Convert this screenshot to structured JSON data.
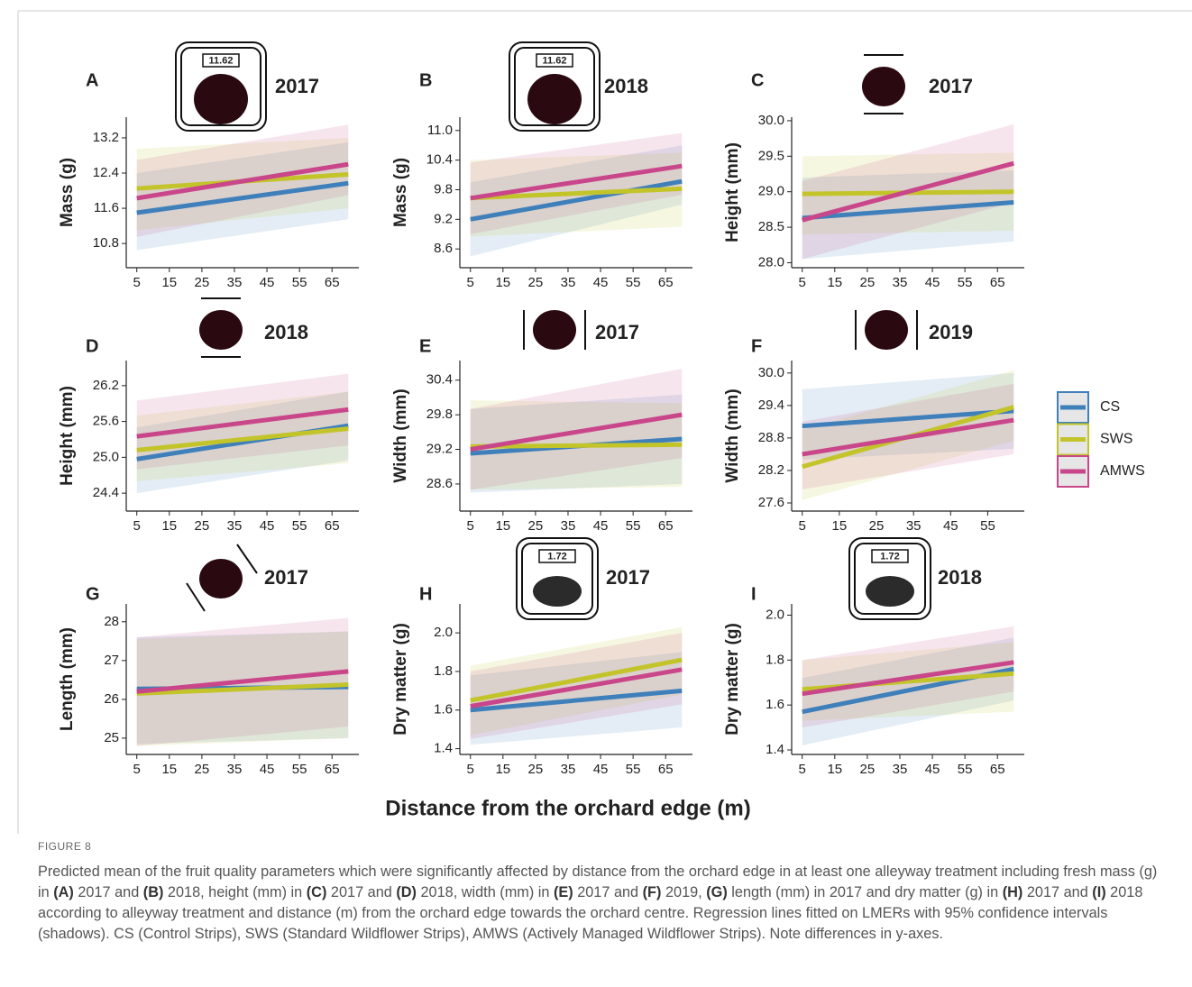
{
  "xlabel": "Distance from the orchard edge (m)",
  "legend": [
    {
      "name": "CS",
      "color": "#3f80bb"
    },
    {
      "name": "SWS",
      "color": "#c2c42a"
    },
    {
      "name": "AMWS",
      "color": "#c9468a"
    }
  ],
  "figure_label": "FIGURE 8",
  "caption": [
    "Predicted mean of the fruit quality parameters which were significantly affected by distance from the orchard edge in at least one alleyway treatment including fresh mass (g) in ",
    "(A)",
    " 2017 and ",
    "(B)",
    " 2018, height (mm) in ",
    "(C)",
    " 2017 and ",
    "(D)",
    " 2018, width (mm) in ",
    "(E)",
    " 2017 and ",
    "(F)",
    " 2019, ",
    "(G)",
    " length (mm) in 2017 and dry matter (g) in ",
    "(H)",
    " 2017 and ",
    "(I)",
    " 2018 according to alleyway treatment and distance (m) from the orchard edge towards the orchard centre. Regression lines fitted on LMERs with 95% confidence intervals (shadows). CS (Control Strips), SWS (Standard Wildflower Strips), AMWS (Actively Managed Wildflower Strips). Note differences in y-axes."
  ],
  "chart_data": [
    {
      "type": "line",
      "title": "A",
      "year": "2017",
      "icon_label": "11.62",
      "ylabel": "Mass (g)",
      "x": [
        5,
        70
      ],
      "xlim": [
        1.75,
        73.25
      ],
      "xticks": [
        5,
        15,
        25,
        35,
        45,
        55,
        65
      ],
      "ylim": [
        10.25,
        13.67
      ],
      "yticks": [
        10.8,
        11.6,
        12.4,
        13.2
      ],
      "series": [
        {
          "values": [
            11.5,
            12.17
          ],
          "lower": [
            10.65,
            11.35
          ],
          "upper": [
            12.4,
            13.1
          ]
        },
        {
          "values": [
            12.05,
            12.37
          ],
          "lower": [
            11.1,
            11.6
          ],
          "upper": [
            12.95,
            13.2
          ]
        },
        {
          "values": [
            11.83,
            12.6
          ],
          "lower": [
            10.95,
            11.9
          ],
          "upper": [
            12.7,
            13.5
          ]
        }
      ]
    },
    {
      "type": "line",
      "title": "B",
      "year": "2018",
      "icon_label": "11.62",
      "ylabel": "Mass (g)",
      "x": [
        5,
        70
      ],
      "xlim": [
        1.75,
        73.25
      ],
      "xticks": [
        5,
        15,
        25,
        35,
        45,
        55,
        65
      ],
      "ylim": [
        8.22,
        11.27
      ],
      "yticks": [
        8.6,
        9.2,
        9.8,
        10.4,
        {
          "value": 11,
          "label": "11.0"
        }
      ],
      "series": [
        {
          "values": [
            9.2,
            9.97
          ],
          "lower": [
            8.45,
            9.5
          ],
          "upper": [
            9.95,
            10.7
          ]
        },
        {
          "values": [
            9.63,
            9.82
          ],
          "lower": [
            8.85,
            9.05
          ],
          "upper": [
            10.4,
            10.55
          ]
        },
        {
          "values": [
            9.63,
            10.28
          ],
          "lower": [
            8.9,
            9.7
          ],
          "upper": [
            10.35,
            10.95
          ]
        }
      ]
    },
    {
      "type": "line",
      "title": "C",
      "year": "2017",
      "ylabel": "Height (mm)",
      "x": [
        5,
        70
      ],
      "xlim": [
        1.75,
        73.25
      ],
      "xticks": [
        5,
        15,
        25,
        35,
        45,
        55,
        65
      ],
      "ylim": [
        27.93,
        30.05
      ],
      "yticks": [
        {
          "value": 28,
          "label": "28.0"
        },
        28.5,
        {
          "value": 29,
          "label": "29.0"
        },
        29.5,
        {
          "value": 30,
          "label": "30.0"
        }
      ],
      "series": [
        {
          "values": [
            28.63,
            28.85
          ],
          "lower": [
            28.05,
            28.3
          ],
          "upper": [
            29.2,
            29.3
          ]
        },
        {
          "values": [
            28.97,
            29.0
          ],
          "lower": [
            28.4,
            28.45
          ],
          "upper": [
            29.5,
            29.55
          ]
        },
        {
          "values": [
            28.6,
            29.4
          ],
          "lower": [
            28.05,
            28.85
          ],
          "upper": [
            29.15,
            29.95
          ]
        }
      ]
    },
    {
      "type": "line",
      "title": "D",
      "year": "2018",
      "ylabel": "Height (mm)",
      "x": [
        5,
        70
      ],
      "xlim": [
        1.75,
        73.25
      ],
      "xticks": [
        5,
        15,
        25,
        35,
        45,
        55,
        65
      ],
      "ylim": [
        24.1,
        26.62
      ],
      "yticks": [
        24.4,
        {
          "value": 25,
          "label": "25.0"
        },
        25.6,
        26.2
      ],
      "series": [
        {
          "values": [
            24.97,
            25.53
          ],
          "lower": [
            24.4,
            24.95
          ],
          "upper": [
            25.5,
            26.1
          ]
        },
        {
          "values": [
            25.12,
            25.48
          ],
          "lower": [
            24.6,
            24.9
          ],
          "upper": [
            25.7,
            26.1
          ]
        },
        {
          "values": [
            25.35,
            25.8
          ],
          "lower": [
            24.8,
            25.2
          ],
          "upper": [
            25.95,
            26.4
          ]
        }
      ]
    },
    {
      "type": "line",
      "title": "E",
      "year": "2017",
      "ylabel": "Width (mm)",
      "x": [
        5,
        70
      ],
      "xlim": [
        1.75,
        73.25
      ],
      "xticks": [
        5,
        15,
        25,
        35,
        45,
        55,
        65
      ],
      "ylim": [
        28.13,
        30.74
      ],
      "yticks": [
        28.6,
        29.2,
        29.8,
        30.4
      ],
      "series": [
        {
          "values": [
            29.13,
            29.38
          ],
          "lower": [
            28.45,
            28.6
          ],
          "upper": [
            29.9,
            30.15
          ]
        },
        {
          "values": [
            29.25,
            29.28
          ],
          "lower": [
            28.5,
            28.55
          ],
          "upper": [
            30.05,
            30.0
          ]
        },
        {
          "values": [
            29.2,
            29.8
          ],
          "lower": [
            28.5,
            29.05
          ],
          "upper": [
            29.9,
            30.6
          ]
        }
      ]
    },
    {
      "type": "line",
      "title": "F",
      "year": "2019",
      "ylabel": "Width (mm)",
      "x": [
        5,
        62
      ],
      "xlim": [
        2.15,
        64.85
      ],
      "xticks": [
        5,
        15,
        25,
        35,
        45,
        55
      ],
      "ylim": [
        27.45,
        30.23
      ],
      "yticks": [
        27.6,
        28.2,
        28.8,
        29.4,
        {
          "value": 30,
          "label": "30.0"
        }
      ],
      "series": [
        {
          "values": [
            29.02,
            29.3
          ],
          "lower": [
            28.4,
            28.6
          ],
          "upper": [
            29.7,
            30.0
          ]
        },
        {
          "values": [
            28.27,
            29.37
          ],
          "lower": [
            27.65,
            28.75
          ],
          "upper": [
            28.95,
            30.05
          ]
        },
        {
          "values": [
            28.5,
            29.13
          ],
          "lower": [
            27.85,
            28.5
          ],
          "upper": [
            29.1,
            29.8
          ]
        }
      ]
    },
    {
      "type": "line",
      "title": "G",
      "year": "2017",
      "ylabel": "Length (mm)",
      "x": [
        5,
        70
      ],
      "xlim": [
        1.75,
        73.25
      ],
      "xticks": [
        5,
        15,
        25,
        35,
        45,
        55,
        65
      ],
      "ylim": [
        24.58,
        28.46
      ],
      "yticks": [
        25,
        26,
        27,
        28
      ],
      "series": [
        {
          "values": [
            26.27,
            26.32
          ],
          "lower": [
            24.85,
            25.0
          ],
          "upper": [
            27.6,
            27.75
          ]
        },
        {
          "values": [
            26.15,
            26.38
          ],
          "lower": [
            24.8,
            25.0
          ],
          "upper": [
            27.55,
            27.75
          ]
        },
        {
          "values": [
            26.2,
            26.72
          ],
          "lower": [
            24.8,
            25.3
          ],
          "upper": [
            27.6,
            28.1
          ]
        }
      ]
    },
    {
      "type": "line",
      "title": "H",
      "year": "2017",
      "icon_label": "1.72",
      "ylabel": "Dry matter (g)",
      "x": [
        5,
        70
      ],
      "xlim": [
        1.75,
        73.25
      ],
      "xticks": [
        5,
        15,
        25,
        35,
        45,
        55,
        65
      ],
      "ylim": [
        1.37,
        2.15
      ],
      "yticks": [
        1.4,
        1.6,
        1.8,
        {
          "value": 2,
          "label": "2.0"
        }
      ],
      "series": [
        {
          "values": [
            1.6,
            1.7
          ],
          "lower": [
            1.42,
            1.51
          ],
          "upper": [
            1.78,
            1.9
          ]
        },
        {
          "values": [
            1.65,
            1.86
          ],
          "lower": [
            1.47,
            1.68
          ],
          "upper": [
            1.83,
            2.03
          ]
        },
        {
          "values": [
            1.62,
            1.81
          ],
          "lower": [
            1.45,
            1.63
          ],
          "upper": [
            1.8,
            2.0
          ]
        }
      ]
    },
    {
      "type": "line",
      "title": "I",
      "year": "2018",
      "icon_label": "1.72",
      "ylabel": "Dry matter (g)",
      "x": [
        5,
        70
      ],
      "xlim": [
        1.75,
        73.25
      ],
      "xticks": [
        5,
        15,
        25,
        35,
        45,
        55,
        65
      ],
      "ylim": [
        1.38,
        2.05
      ],
      "yticks": [
        1.4,
        1.6,
        1.8,
        {
          "value": 2,
          "label": "2.0"
        }
      ],
      "series": [
        {
          "values": [
            1.57,
            1.76
          ],
          "lower": [
            1.42,
            1.62
          ],
          "upper": [
            1.72,
            1.9
          ]
        },
        {
          "values": [
            1.67,
            1.74
          ],
          "lower": [
            1.53,
            1.57
          ],
          "upper": [
            1.8,
            1.88
          ]
        },
        {
          "values": [
            1.65,
            1.79
          ],
          "lower": [
            1.5,
            1.66
          ],
          "upper": [
            1.8,
            1.95
          ]
        }
      ]
    }
  ]
}
